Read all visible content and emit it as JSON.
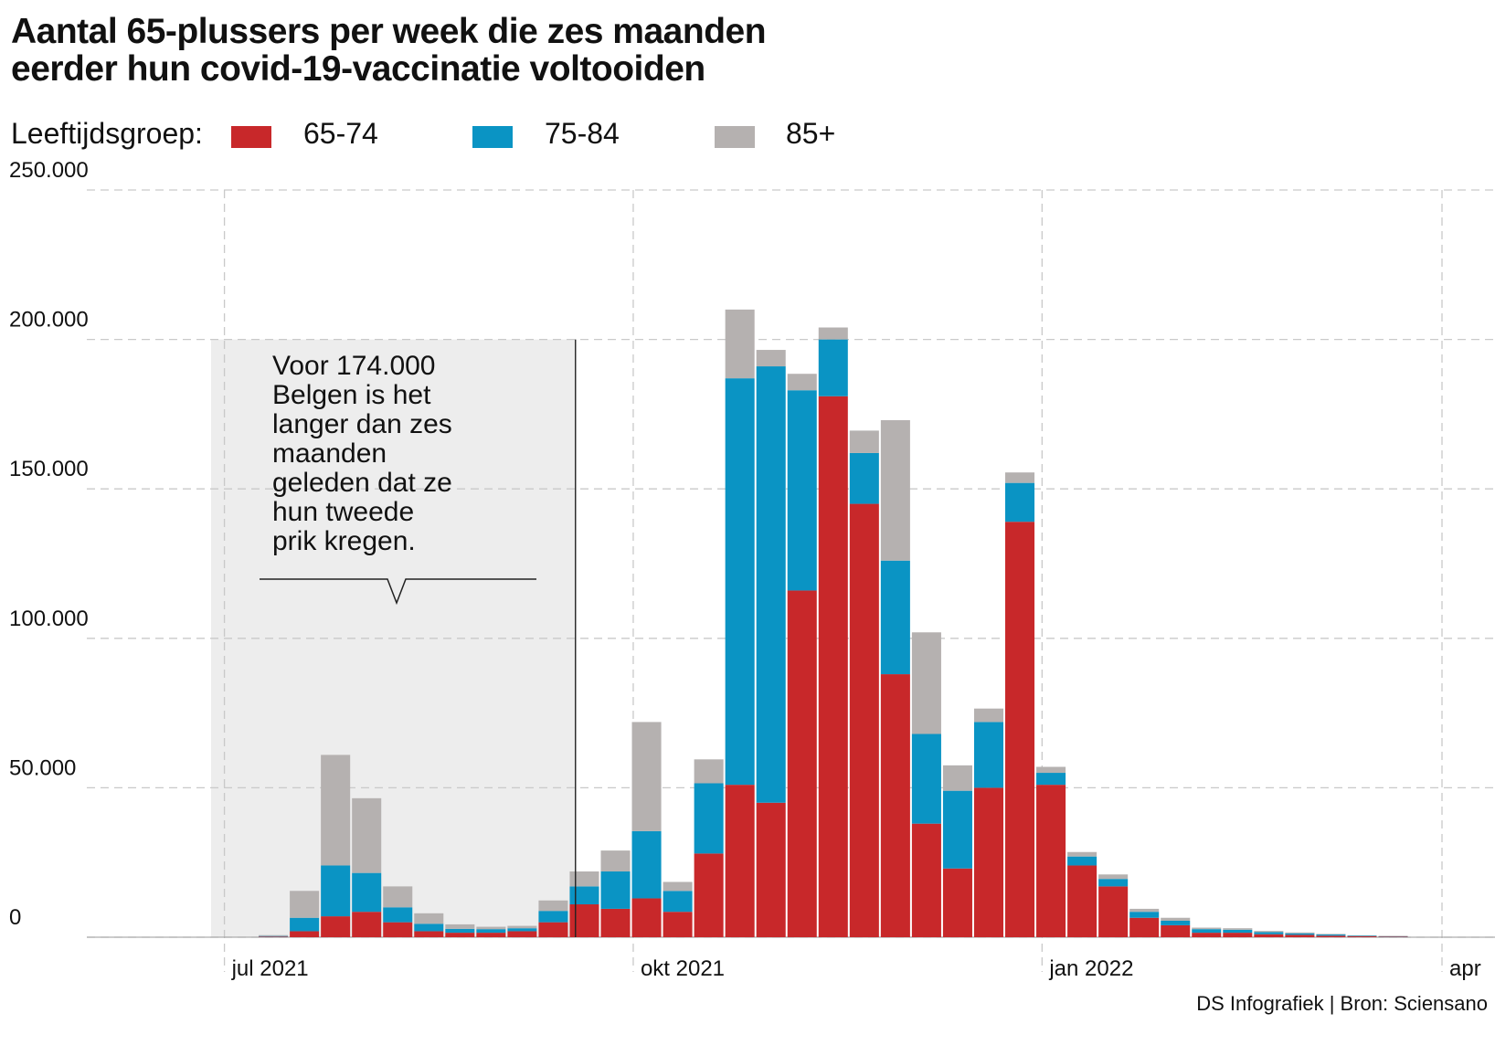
{
  "title": {
    "line1": "Aantal 65-plussers per week die zes maanden",
    "line2": "eerder hun covid-19-vaccinatie voltooiden"
  },
  "legend": {
    "label": "Leeftijdsgroep:",
    "items": [
      {
        "name": "65-74",
        "color": "#c8282a"
      },
      {
        "name": "75-84",
        "color": "#0a94c4"
      },
      {
        "name": "85+",
        "color": "#b5b1b0"
      }
    ]
  },
  "annotation": {
    "lines": [
      "Voor 174.000",
      "Belgen is het",
      "langer dan zes",
      "maanden",
      "geleden dat ze",
      "hun tweede",
      "prik kregen."
    ]
  },
  "credit": "DS Infografiek | Bron: Sciensano",
  "chart_data": {
    "type": "bar",
    "stacked": true,
    "ylim": [
      0,
      250000
    ],
    "y_ticks": [
      {
        "value": 0,
        "label": "0"
      },
      {
        "value": 50000,
        "label": "50.000"
      },
      {
        "value": 100000,
        "label": "100.000"
      },
      {
        "value": 150000,
        "label": "150.000"
      },
      {
        "value": 200000,
        "label": "200.000"
      },
      {
        "value": 250000,
        "label": "250.000"
      }
    ],
    "x_range": [
      "2021-06-28",
      "2022-04-01"
    ],
    "x_ticks": [
      {
        "date": "2021-07-01",
        "label": "jul 2021"
      },
      {
        "date": "2021-10-01",
        "label": "okt 2021"
      },
      {
        "date": "2022-01-01",
        "label": "jan 2022"
      },
      {
        "date": "2022-04-01",
        "label": "apr"
      }
    ],
    "grid": true,
    "legend_position": "top",
    "shaded_period": {
      "from": "2021-06-28",
      "to": "2021-09-18",
      "y_top": 200000
    },
    "categories": [
      "2021-07-05",
      "2021-07-12",
      "2021-07-19",
      "2021-07-26",
      "2021-08-02",
      "2021-08-09",
      "2021-08-16",
      "2021-08-23",
      "2021-08-30",
      "2021-09-06",
      "2021-09-13",
      "2021-09-20",
      "2021-09-27",
      "2021-10-04",
      "2021-10-11",
      "2021-10-18",
      "2021-10-25",
      "2021-11-01",
      "2021-11-08",
      "2021-11-15",
      "2021-11-22",
      "2021-11-29",
      "2021-12-06",
      "2021-12-13",
      "2021-12-20",
      "2021-12-27",
      "2022-01-03",
      "2022-01-10",
      "2022-01-17",
      "2022-01-24",
      "2022-01-31",
      "2022-02-07",
      "2022-02-14",
      "2022-02-21",
      "2022-02-28",
      "2022-03-07",
      "2022-03-14",
      "2022-03-21"
    ],
    "series": [
      {
        "name": "65-74",
        "color": "#c8282a",
        "values": [
          0,
          200,
          2000,
          7000,
          8500,
          5000,
          2000,
          1500,
          1500,
          2000,
          5000,
          11000,
          9500,
          13000,
          8500,
          28000,
          51000,
          45000,
          116000,
          181000,
          145000,
          88000,
          38000,
          23000,
          50000,
          139000,
          51000,
          24000,
          17000,
          6500,
          4000,
          1500,
          1500,
          1000,
          800,
          500,
          300,
          200
        ]
      },
      {
        "name": "75-84",
        "color": "#0a94c4",
        "values": [
          0,
          200,
          4500,
          17000,
          13000,
          5000,
          2500,
          1300,
          1200,
          1000,
          3800,
          6000,
          12500,
          22500,
          7000,
          23500,
          136000,
          146000,
          67000,
          19000,
          17000,
          38000,
          30000,
          26000,
          22000,
          13000,
          4000,
          3000,
          2500,
          2000,
          1500,
          1200,
          1000,
          700,
          500,
          400,
          200,
          150
        ]
      },
      {
        "name": "85+",
        "color": "#b5b1b0",
        "values": [
          0,
          300,
          9000,
          37000,
          25000,
          7000,
          3500,
          1500,
          800,
          800,
          3500,
          5000,
          7000,
          36500,
          3000,
          8000,
          23000,
          5500,
          5500,
          4000,
          7500,
          47000,
          34000,
          8500,
          4500,
          3500,
          2000,
          1500,
          1500,
          1000,
          1000,
          500,
          500,
          400,
          300,
          200,
          150,
          100
        ]
      }
    ]
  }
}
